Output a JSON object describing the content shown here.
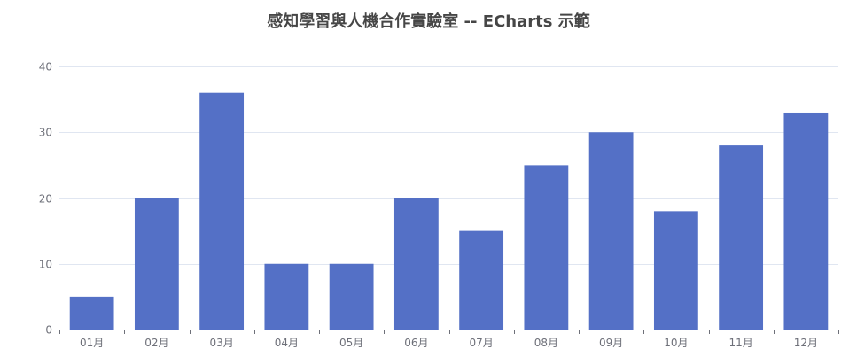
{
  "chart_data": {
    "type": "bar",
    "title": "感知學習與人機合作實驗室 -- ECharts 示範",
    "categories": [
      "01月",
      "02月",
      "03月",
      "04月",
      "05月",
      "06月",
      "07月",
      "08月",
      "09月",
      "10月",
      "11月",
      "12月"
    ],
    "values": [
      5,
      20,
      36,
      10,
      10,
      20,
      15,
      25,
      30,
      18,
      28,
      33
    ],
    "ylim": [
      0,
      40
    ],
    "yticks": [
      0,
      10,
      20,
      30,
      40
    ],
    "grid": true,
    "colors": {
      "bar": "#5470c6",
      "axis": "#6e7079",
      "grid": "#e0e6f1",
      "label": "#6e7079",
      "title": "#464646"
    }
  }
}
